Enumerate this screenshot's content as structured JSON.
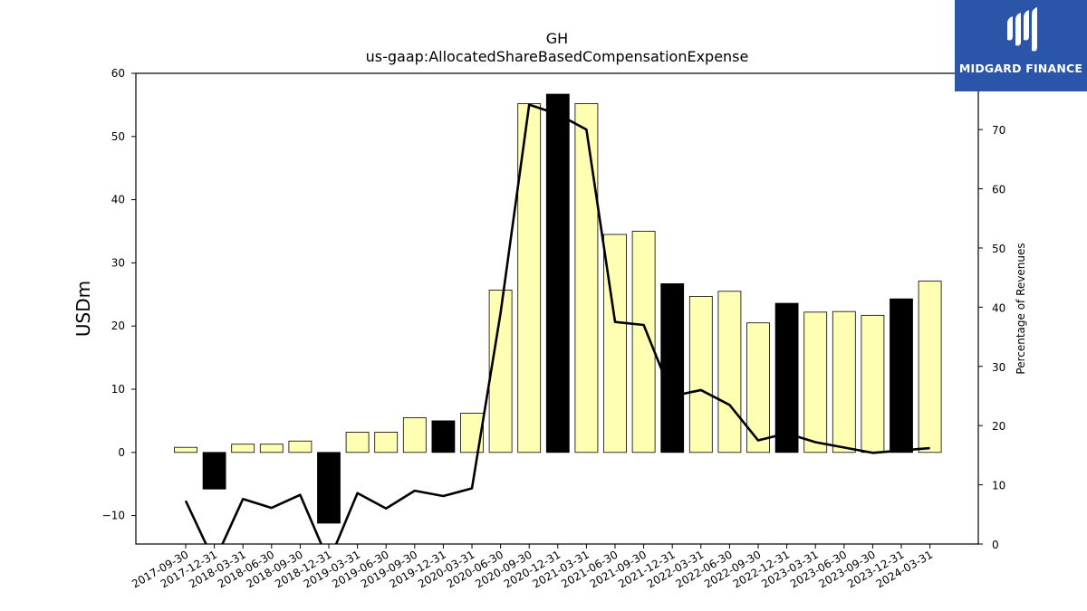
{
  "chart_data": {
    "type": "bar",
    "title": "GH",
    "subtitle": "us-gaap:AllocatedShareBasedCompensationExpense",
    "ylabel": "USDm",
    "ylabel_right": "Percentage of Revenues",
    "ylim": [
      -14.5,
      60
    ],
    "ylim_right": [
      0,
      79.5
    ],
    "yticks": [
      -10,
      0,
      10,
      20,
      30,
      40,
      50,
      60
    ],
    "yticks_right": [
      0,
      10,
      20,
      30,
      40,
      50,
      60,
      70
    ],
    "grid": false,
    "categories": [
      "2017-09-30",
      "2017-12-31",
      "2018-03-31",
      "2018-06-30",
      "2018-09-30",
      "2018-12-31",
      "2019-03-31",
      "2019-06-30",
      "2019-09-30",
      "2019-12-31",
      "2020-03-31",
      "2020-06-30",
      "2020-09-30",
      "2020-12-31",
      "2021-03-31",
      "2021-06-30",
      "2021-09-30",
      "2021-12-31",
      "2022-03-31",
      "2022-06-30",
      "2022-09-30",
      "2022-12-31",
      "2023-03-31",
      "2023-06-30",
      "2023-09-30",
      "2023-12-31",
      "2024-03-31"
    ],
    "series": [
      {
        "values": [
          0.8,
          -5.8,
          1.3,
          1.3,
          1.8,
          -11.2,
          3.2,
          3.2,
          5.5,
          5.0,
          6.2,
          25.7,
          55.2,
          56.7,
          55.2,
          34.5,
          35.0,
          26.7,
          24.7,
          25.5,
          20.5,
          23.6,
          22.2,
          22.3,
          21.7,
          24.3,
          27.1
        ],
        "highlight": [
          false,
          true,
          false,
          false,
          false,
          true,
          false,
          false,
          false,
          true,
          false,
          false,
          false,
          true,
          false,
          false,
          false,
          true,
          false,
          false,
          false,
          true,
          false,
          false,
          false,
          true,
          false
        ]
      },
      {
        "axis": "right",
        "type": "line",
        "values": [
          7.3,
          -3,
          7.6,
          6.1,
          8.3,
          -3,
          8.6,
          6.0,
          9.0,
          8.1,
          9.4,
          39.0,
          74.2,
          72.6,
          70.0,
          37.5,
          37.0,
          25.0,
          26.0,
          23.5,
          17.5,
          18.7,
          17.2,
          16.3,
          15.4,
          15.8,
          16.2
        ]
      }
    ],
    "colors": {
      "bar_fill": "#ffffb3",
      "bar_highlight": "#000000",
      "bar_edge": "#000000",
      "line": "#000000"
    }
  },
  "logo": {
    "text": "MIDGARD FINANCE",
    "bg": "#2a55a8",
    "fg": "#ffffff"
  }
}
